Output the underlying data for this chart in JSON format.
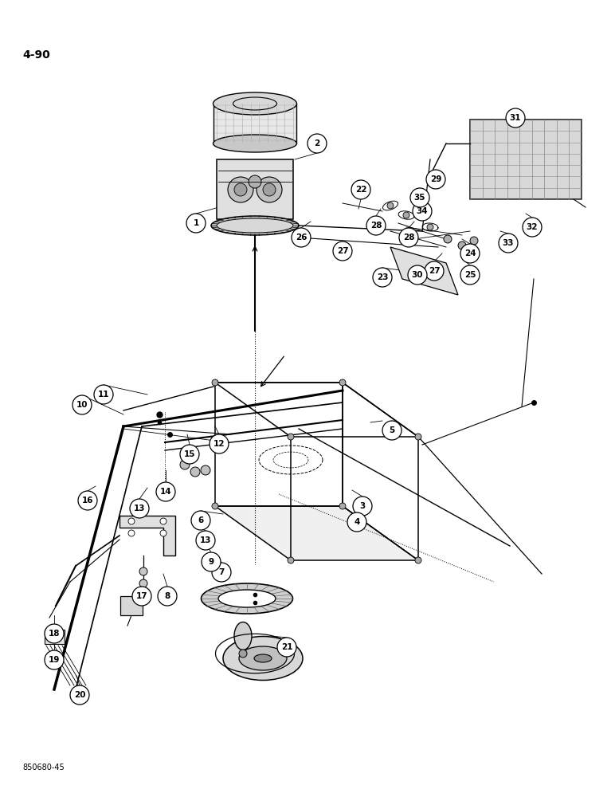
{
  "page_label": "4-90",
  "figure_code": "850680-45",
  "background_color": "#ffffff",
  "line_color": "#000000",
  "figsize": [
    7.72,
    10.0
  ],
  "dpi": 100
}
